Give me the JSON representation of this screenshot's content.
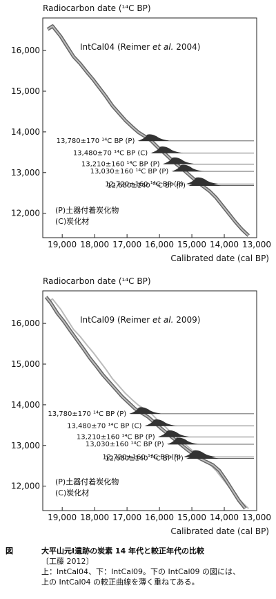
{
  "chart_data": [
    {
      "type": "line",
      "ylabel": "Radiocarbon date (¹⁴C BP)",
      "xlabel": "Calibrated date (cal BP)",
      "x_ticks": [
        "19,000",
        "18,000",
        "17,000",
        "16,000",
        "15,000",
        "14,000",
        "13,000"
      ],
      "y_ticks": [
        "16,000",
        "15,000",
        "14,000",
        "13,000",
        "12,000"
      ],
      "xlim": [
        19600,
        13000
      ],
      "ylim": [
        11400,
        16800
      ],
      "series_label": "IntCal04 (Reimer et al. 2004)",
      "curve": [
        [
          19450,
          16520
        ],
        [
          19300,
          16600
        ],
        [
          19050,
          16350
        ],
        [
          18850,
          16100
        ],
        [
          18650,
          15850
        ],
        [
          18450,
          15680
        ],
        [
          18250,
          15480
        ],
        [
          18050,
          15290
        ],
        [
          17850,
          15080
        ],
        [
          17650,
          14870
        ],
        [
          17450,
          14640
        ],
        [
          17250,
          14460
        ],
        [
          17050,
          14280
        ],
        [
          16850,
          14130
        ],
        [
          16650,
          13990
        ],
        [
          16450,
          13890
        ],
        [
          16250,
          13780
        ],
        [
          16050,
          13620
        ],
        [
          15850,
          13480
        ],
        [
          15650,
          13330
        ],
        [
          15450,
          13190
        ],
        [
          15250,
          13060
        ],
        [
          15050,
          12920
        ],
        [
          14850,
          12780
        ],
        [
          14650,
          12660
        ],
        [
          14450,
          12540
        ],
        [
          14250,
          12380
        ],
        [
          14050,
          12180
        ],
        [
          13850,
          11980
        ],
        [
          13650,
          11780
        ],
        [
          13450,
          11600
        ],
        [
          13250,
          11450
        ]
      ],
      "samples": [
        {
          "label": "13,780±170 ¹⁴C BP (P)",
          "c14": 13780
        },
        {
          "label": "13,480±70 ¹⁴C BP (C)",
          "c14": 13480
        },
        {
          "label": "13,210±160 ¹⁴C BP (P)",
          "c14": 13210
        },
        {
          "label": "13,030±160 ¹⁴C BP (P)",
          "c14": 13030
        },
        {
          "label": "12,720±160 ¹⁴C BP (P)",
          "c14": 12720
        },
        {
          "label": "12,680±140 ¹⁴C BP (P)",
          "c14": 12680
        }
      ],
      "legend": [
        "(P)土器付着炭化物",
        "(C)炭化材"
      ]
    },
    {
      "type": "line",
      "ylabel": "Radiocarbon date (¹⁴C BP)",
      "xlabel": "Calibrated date (cal BP)",
      "x_ticks": [
        "19,000",
        "18,000",
        "17,000",
        "16,000",
        "15,000",
        "14,000",
        "13,000"
      ],
      "y_ticks": [
        "16,000",
        "15,000",
        "14,000",
        "13,000",
        "12,000"
      ],
      "xlim": [
        19600,
        13000
      ],
      "ylim": [
        11400,
        16800
      ],
      "series_label": "IntCal09 (Reimer et al. 2009)",
      "curve": [
        [
          19500,
          16650
        ],
        [
          19350,
          16500
        ],
        [
          19150,
          16250
        ],
        [
          18950,
          16050
        ],
        [
          18750,
          15820
        ],
        [
          18550,
          15600
        ],
        [
          18350,
          15380
        ],
        [
          18150,
          15150
        ],
        [
          17950,
          14950
        ],
        [
          17750,
          14740
        ],
        [
          17550,
          14560
        ],
        [
          17350,
          14380
        ],
        [
          17150,
          14200
        ],
        [
          16950,
          14050
        ],
        [
          16750,
          13900
        ],
        [
          16550,
          13800
        ],
        [
          16350,
          13700
        ],
        [
          16150,
          13560
        ],
        [
          15950,
          13420
        ],
        [
          15750,
          13290
        ],
        [
          15550,
          13160
        ],
        [
          15350,
          13030
        ],
        [
          15150,
          12900
        ],
        [
          14950,
          12780
        ],
        [
          14750,
          12680
        ],
        [
          14550,
          12600
        ],
        [
          14350,
          12520
        ],
        [
          14150,
          12380
        ],
        [
          13950,
          12150
        ],
        [
          13750,
          11900
        ],
        [
          13550,
          11650
        ],
        [
          13350,
          11450
        ]
      ],
      "samples": [
        {
          "label": "13,780±170 ¹⁴C BP (P)",
          "c14": 13780
        },
        {
          "label": "13,480±70 ¹⁴C BP (C)",
          "c14": 13480
        },
        {
          "label": "13,210±160 ¹⁴C BP (P)",
          "c14": 13210
        },
        {
          "label": "13,030±160 ¹⁴C BP (P)",
          "c14": 13030
        },
        {
          "label": "12,720±160 ¹⁴C BP (P)",
          "c14": 12720
        },
        {
          "label": "12,680±140 ¹⁴C BP (P)",
          "c14": 12680
        }
      ],
      "legend": [
        "(P)土器付着炭化物",
        "(C)炭化材"
      ]
    }
  ],
  "caption": {
    "fig_label": "図",
    "title": "大平山元Ⅰ遺跡の炭素 14 年代と較正年代の比較",
    "source": "〔工藤 2012〕",
    "note_line1": "上：IntCal04、下：IntCal09。下の IntCal09 の図には、",
    "note_line2": "上の IntCal04 の較正曲線を薄く重ねてある。"
  }
}
